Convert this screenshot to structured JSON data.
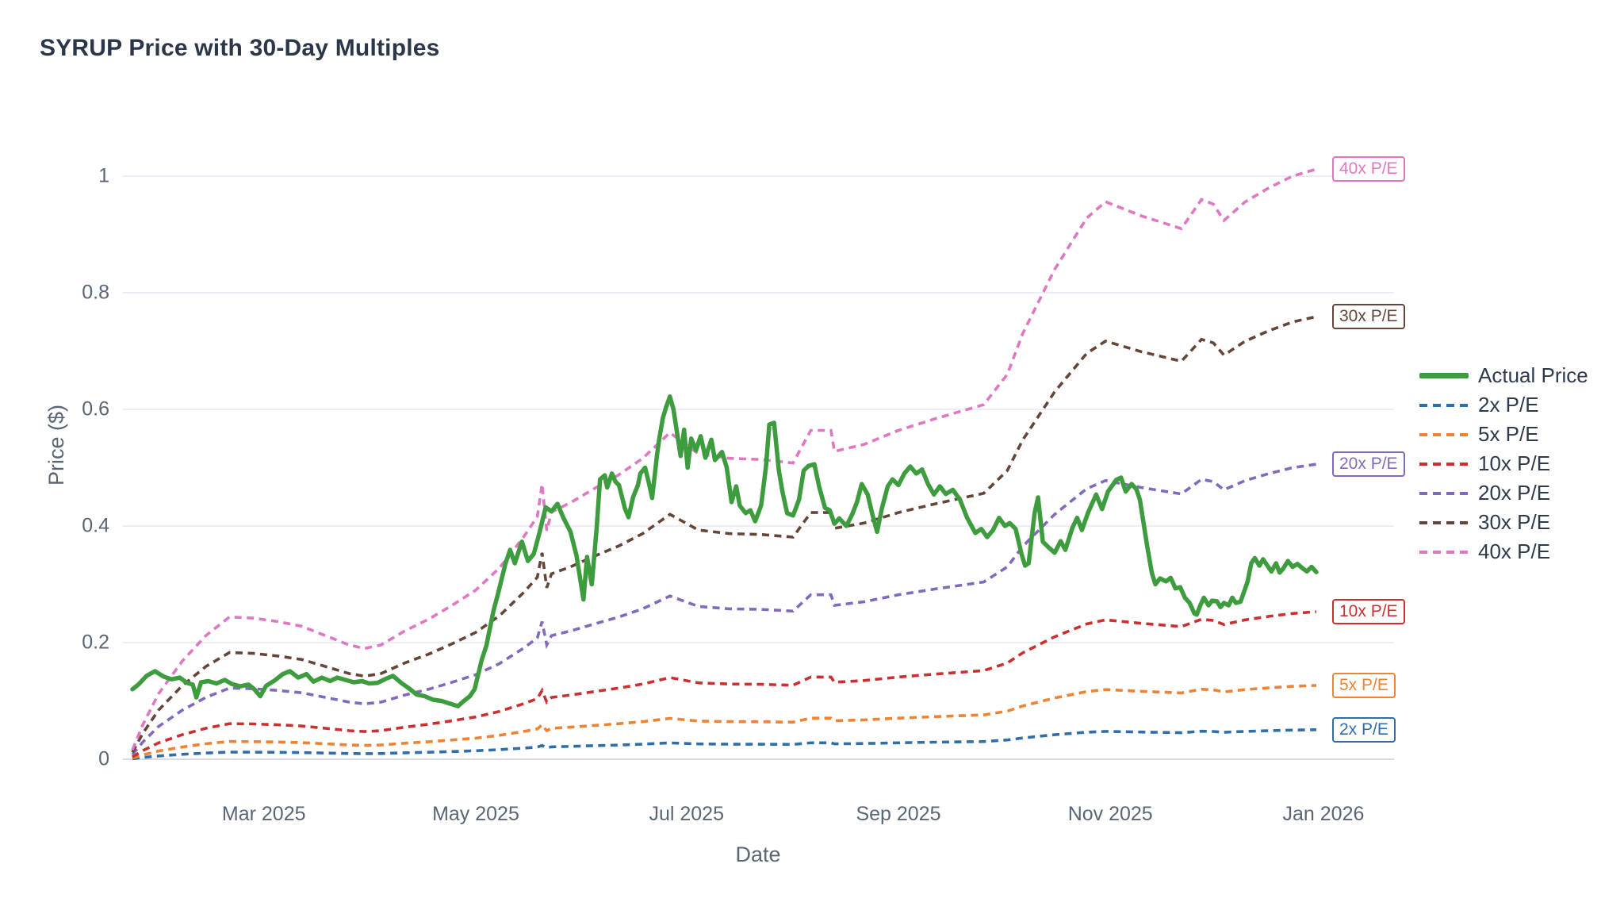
{
  "title": "SYRUP Price with 30-Day Multiples",
  "colors": {
    "actual": "#3d9c3d",
    "pe2": "#2f6ea8",
    "pe5": "#ee8333",
    "pe10": "#cb2f2f",
    "pe20": "#8169bd",
    "pe30": "#654538",
    "pe40": "#e077c3",
    "grid": "#eaedf1",
    "zeroline": "#d9dde2",
    "title_text": "#2b3648",
    "tick_text": "#5a6675"
  },
  "legend": {
    "items": [
      {
        "label": "Actual Price",
        "color": "#3d9c3d",
        "dash": false
      },
      {
        "label": "2x P/E",
        "color": "#2f6ea8",
        "dash": true
      },
      {
        "label": "5x P/E",
        "color": "#ee8333",
        "dash": true
      },
      {
        "label": "10x P/E",
        "color": "#cb2f2f",
        "dash": true
      },
      {
        "label": "20x P/E",
        "color": "#8169bd",
        "dash": true
      },
      {
        "label": "30x P/E",
        "color": "#654538",
        "dash": true
      },
      {
        "label": "40x P/E",
        "color": "#e077c3",
        "dash": true
      }
    ]
  },
  "line_labels": [
    {
      "label": "40x P/E",
      "multiple": 40,
      "color": "#e077c3"
    },
    {
      "label": "30x P/E",
      "multiple": 30,
      "color": "#654538"
    },
    {
      "label": "20x P/E",
      "multiple": 20,
      "color": "#8169bd"
    },
    {
      "label": "10x P/E",
      "multiple": 10,
      "color": "#cb2f2f"
    },
    {
      "label": "5x P/E",
      "multiple": 5,
      "color": "#ee8333"
    },
    {
      "label": "2x P/E",
      "multiple": 2,
      "color": "#2f6ea8"
    }
  ],
  "chart_data": {
    "type": "line",
    "title": "SYRUP Price with 30-Day Multiples",
    "xlabel": "Date",
    "ylabel": "Price ($)",
    "ylim": [
      0,
      1.05
    ],
    "grid": "horizontal",
    "x_ticks": [
      {
        "label": "Mar 2025",
        "f": 0.111
      },
      {
        "label": "May 2025",
        "f": 0.29
      },
      {
        "label": "Jul 2025",
        "f": 0.468
      },
      {
        "label": "Sep 2025",
        "f": 0.647
      },
      {
        "label": "Nov 2025",
        "f": 0.826
      },
      {
        "label": "Jan 2026",
        "f": 1.006
      }
    ],
    "y_ticks": [
      {
        "label": "0",
        "value": 0
      },
      {
        "label": "0.2",
        "value": 0.2
      },
      {
        "label": "0.4",
        "value": 0.4
      },
      {
        "label": "0.6",
        "value": 0.6
      },
      {
        "label": "0.8",
        "value": 0.8
      },
      {
        "label": "1",
        "value": 1
      }
    ],
    "series_actual": {
      "name": "Actual Price",
      "color": "#3d9c3d",
      "style": "solid",
      "points": [
        [
          0.0,
          0.12
        ],
        [
          0.005,
          0.128
        ],
        [
          0.012,
          0.143
        ],
        [
          0.019,
          0.151
        ],
        [
          0.026,
          0.142
        ],
        [
          0.033,
          0.137
        ],
        [
          0.04,
          0.14
        ],
        [
          0.046,
          0.131
        ],
        [
          0.051,
          0.128
        ],
        [
          0.054,
          0.106
        ],
        [
          0.058,
          0.132
        ],
        [
          0.064,
          0.134
        ],
        [
          0.071,
          0.13
        ],
        [
          0.078,
          0.136
        ],
        [
          0.084,
          0.129
        ],
        [
          0.091,
          0.125
        ],
        [
          0.098,
          0.128
        ],
        [
          0.103,
          0.12
        ],
        [
          0.108,
          0.108
        ],
        [
          0.113,
          0.126
        ],
        [
          0.12,
          0.135
        ],
        [
          0.127,
          0.146
        ],
        [
          0.133,
          0.151
        ],
        [
          0.14,
          0.14
        ],
        [
          0.147,
          0.146
        ],
        [
          0.153,
          0.133
        ],
        [
          0.16,
          0.14
        ],
        [
          0.167,
          0.134
        ],
        [
          0.173,
          0.14
        ],
        [
          0.18,
          0.136
        ],
        [
          0.187,
          0.132
        ],
        [
          0.194,
          0.134
        ],
        [
          0.2,
          0.13
        ],
        [
          0.207,
          0.131
        ],
        [
          0.214,
          0.138
        ],
        [
          0.22,
          0.143
        ],
        [
          0.227,
          0.131
        ],
        [
          0.234,
          0.121
        ],
        [
          0.24,
          0.111
        ],
        [
          0.247,
          0.108
        ],
        [
          0.254,
          0.102
        ],
        [
          0.261,
          0.1
        ],
        [
          0.267,
          0.096
        ],
        [
          0.275,
          0.091
        ],
        [
          0.28,
          0.1
        ],
        [
          0.285,
          0.108
        ],
        [
          0.289,
          0.12
        ],
        [
          0.292,
          0.145
        ],
        [
          0.295,
          0.17
        ],
        [
          0.299,
          0.195
        ],
        [
          0.302,
          0.225
        ],
        [
          0.305,
          0.255
        ],
        [
          0.309,
          0.285
        ],
        [
          0.312,
          0.31
        ],
        [
          0.315,
          0.335
        ],
        [
          0.319,
          0.359
        ],
        [
          0.323,
          0.336
        ],
        [
          0.329,
          0.373
        ],
        [
          0.334,
          0.34
        ],
        [
          0.339,
          0.352
        ],
        [
          0.344,
          0.39
        ],
        [
          0.349,
          0.432
        ],
        [
          0.354,
          0.425
        ],
        [
          0.359,
          0.438
        ],
        [
          0.364,
          0.414
        ],
        [
          0.37,
          0.39
        ],
        [
          0.375,
          0.35
        ],
        [
          0.381,
          0.274
        ],
        [
          0.384,
          0.347
        ],
        [
          0.388,
          0.3
        ],
        [
          0.392,
          0.394
        ],
        [
          0.395,
          0.48
        ],
        [
          0.399,
          0.487
        ],
        [
          0.401,
          0.466
        ],
        [
          0.405,
          0.49
        ],
        [
          0.408,
          0.476
        ],
        [
          0.411,
          0.47
        ],
        [
          0.416,
          0.43
        ],
        [
          0.419,
          0.415
        ],
        [
          0.423,
          0.45
        ],
        [
          0.427,
          0.47
        ],
        [
          0.429,
          0.49
        ],
        [
          0.433,
          0.5
        ],
        [
          0.436,
          0.476
        ],
        [
          0.439,
          0.448
        ],
        [
          0.443,
          0.52
        ],
        [
          0.445,
          0.55
        ],
        [
          0.448,
          0.585
        ],
        [
          0.451,
          0.605
        ],
        [
          0.454,
          0.622
        ],
        [
          0.457,
          0.6
        ],
        [
          0.46,
          0.56
        ],
        [
          0.463,
          0.52
        ],
        [
          0.466,
          0.565
        ],
        [
          0.469,
          0.5
        ],
        [
          0.472,
          0.55
        ],
        [
          0.476,
          0.53
        ],
        [
          0.48,
          0.554
        ],
        [
          0.484,
          0.517
        ],
        [
          0.489,
          0.548
        ],
        [
          0.492,
          0.513
        ],
        [
          0.498,
          0.527
        ],
        [
          0.502,
          0.5
        ],
        [
          0.506,
          0.441
        ],
        [
          0.51,
          0.468
        ],
        [
          0.513,
          0.435
        ],
        [
          0.518,
          0.422
        ],
        [
          0.522,
          0.427
        ],
        [
          0.526,
          0.408
        ],
        [
          0.531,
          0.435
        ],
        [
          0.535,
          0.5
        ],
        [
          0.538,
          0.574
        ],
        [
          0.542,
          0.577
        ],
        [
          0.546,
          0.495
        ],
        [
          0.549,
          0.459
        ],
        [
          0.553,
          0.422
        ],
        [
          0.558,
          0.418
        ],
        [
          0.563,
          0.445
        ],
        [
          0.567,
          0.495
        ],
        [
          0.571,
          0.503
        ],
        [
          0.576,
          0.506
        ],
        [
          0.58,
          0.468
        ],
        [
          0.585,
          0.431
        ],
        [
          0.589,
          0.427
        ],
        [
          0.593,
          0.404
        ],
        [
          0.597,
          0.413
        ],
        [
          0.603,
          0.4
        ],
        [
          0.608,
          0.42
        ],
        [
          0.612,
          0.441
        ],
        [
          0.616,
          0.472
        ],
        [
          0.621,
          0.454
        ],
        [
          0.625,
          0.42
        ],
        [
          0.629,
          0.39
        ],
        [
          0.633,
          0.43
        ],
        [
          0.638,
          0.468
        ],
        [
          0.642,
          0.48
        ],
        [
          0.647,
          0.47
        ],
        [
          0.652,
          0.49
        ],
        [
          0.657,
          0.502
        ],
        [
          0.662,
          0.49
        ],
        [
          0.667,
          0.497
        ],
        [
          0.672,
          0.472
        ],
        [
          0.677,
          0.454
        ],
        [
          0.682,
          0.468
        ],
        [
          0.687,
          0.455
        ],
        [
          0.693,
          0.462
        ],
        [
          0.699,
          0.445
        ],
        [
          0.705,
          0.414
        ],
        [
          0.712,
          0.388
        ],
        [
          0.717,
          0.395
        ],
        [
          0.722,
          0.381
        ],
        [
          0.727,
          0.393
        ],
        [
          0.732,
          0.414
        ],
        [
          0.737,
          0.4
        ],
        [
          0.741,
          0.405
        ],
        [
          0.746,
          0.395
        ],
        [
          0.751,
          0.352
        ],
        [
          0.754,
          0.332
        ],
        [
          0.757,
          0.336
        ],
        [
          0.762,
          0.422
        ],
        [
          0.765,
          0.449
        ],
        [
          0.769,
          0.373
        ],
        [
          0.774,
          0.363
        ],
        [
          0.779,
          0.354
        ],
        [
          0.784,
          0.374
        ],
        [
          0.788,
          0.359
        ],
        [
          0.794,
          0.397
        ],
        [
          0.798,
          0.414
        ],
        [
          0.802,
          0.393
        ],
        [
          0.807,
          0.422
        ],
        [
          0.814,
          0.454
        ],
        [
          0.819,
          0.429
        ],
        [
          0.824,
          0.459
        ],
        [
          0.831,
          0.479
        ],
        [
          0.835,
          0.483
        ],
        [
          0.839,
          0.459
        ],
        [
          0.844,
          0.472
        ],
        [
          0.848,
          0.463
        ],
        [
          0.851,
          0.445
        ],
        [
          0.857,
          0.367
        ],
        [
          0.861,
          0.32
        ],
        [
          0.864,
          0.3
        ],
        [
          0.868,
          0.31
        ],
        [
          0.873,
          0.305
        ],
        [
          0.877,
          0.311
        ],
        [
          0.881,
          0.293
        ],
        [
          0.885,
          0.295
        ],
        [
          0.889,
          0.277
        ],
        [
          0.893,
          0.268
        ],
        [
          0.897,
          0.25
        ],
        [
          0.899,
          0.248
        ],
        [
          0.902,
          0.264
        ],
        [
          0.905,
          0.277
        ],
        [
          0.909,
          0.264
        ],
        [
          0.912,
          0.272
        ],
        [
          0.916,
          0.271
        ],
        [
          0.919,
          0.261
        ],
        [
          0.922,
          0.268
        ],
        [
          0.926,
          0.264
        ],
        [
          0.929,
          0.277
        ],
        [
          0.932,
          0.268
        ],
        [
          0.936,
          0.27
        ],
        [
          0.942,
          0.305
        ],
        [
          0.945,
          0.336
        ],
        [
          0.948,
          0.345
        ],
        [
          0.952,
          0.332
        ],
        [
          0.955,
          0.343
        ],
        [
          0.958,
          0.334
        ],
        [
          0.962,
          0.322
        ],
        [
          0.966,
          0.336
        ],
        [
          0.969,
          0.32
        ],
        [
          0.972,
          0.327
        ],
        [
          0.976,
          0.34
        ],
        [
          0.98,
          0.33
        ],
        [
          0.984,
          0.335
        ],
        [
          0.988,
          0.328
        ],
        [
          0.992,
          0.322
        ],
        [
          0.996,
          0.33
        ],
        [
          1.0,
          0.321
        ]
      ]
    },
    "multiple_series": {
      "base_points": [
        [
          0.0,
          0.0004
        ],
        [
          0.009,
          0.0015
        ],
        [
          0.022,
          0.0028
        ],
        [
          0.042,
          0.0042
        ],
        [
          0.062,
          0.0053
        ],
        [
          0.082,
          0.0061
        ],
        [
          0.102,
          0.00605
        ],
        [
          0.123,
          0.0059
        ],
        [
          0.143,
          0.0057
        ],
        [
          0.163,
          0.0053
        ],
        [
          0.183,
          0.0049
        ],
        [
          0.196,
          0.00475
        ],
        [
          0.21,
          0.0049
        ],
        [
          0.23,
          0.0055
        ],
        [
          0.25,
          0.006
        ],
        [
          0.27,
          0.0066
        ],
        [
          0.29,
          0.00725
        ],
        [
          0.31,
          0.0082
        ],
        [
          0.33,
          0.0095
        ],
        [
          0.342,
          0.0104
        ],
        [
          0.346,
          0.0118
        ],
        [
          0.35,
          0.0098
        ],
        [
          0.354,
          0.0106
        ],
        [
          0.37,
          0.011
        ],
        [
          0.39,
          0.0116
        ],
        [
          0.411,
          0.0122
        ],
        [
          0.431,
          0.0129
        ],
        [
          0.454,
          0.014
        ],
        [
          0.478,
          0.0131
        ],
        [
          0.504,
          0.0129
        ],
        [
          0.531,
          0.01285
        ],
        [
          0.558,
          0.0127
        ],
        [
          0.573,
          0.0141
        ],
        [
          0.59,
          0.0141
        ],
        [
          0.593,
          0.0132
        ],
        [
          0.618,
          0.0135
        ],
        [
          0.647,
          0.0141
        ],
        [
          0.678,
          0.0146
        ],
        [
          0.719,
          0.0152
        ],
        [
          0.739,
          0.0165
        ],
        [
          0.752,
          0.01825
        ],
        [
          0.779,
          0.021
        ],
        [
          0.806,
          0.0232
        ],
        [
          0.822,
          0.0239
        ],
        [
          0.852,
          0.0233
        ],
        [
          0.886,
          0.02275
        ],
        [
          0.903,
          0.024
        ],
        [
          0.913,
          0.0238
        ],
        [
          0.922,
          0.0231
        ],
        [
          0.94,
          0.0239
        ],
        [
          0.96,
          0.0245
        ],
        [
          0.98,
          0.025
        ],
        [
          1.0,
          0.0253
        ]
      ],
      "lines": [
        {
          "name": "2x P/E",
          "multiple": 2,
          "color": "#2f6ea8"
        },
        {
          "name": "5x P/E",
          "multiple": 5,
          "color": "#ee8333"
        },
        {
          "name": "10x P/E",
          "multiple": 10,
          "color": "#cb2f2f"
        },
        {
          "name": "20x P/E",
          "multiple": 20,
          "color": "#8169bd"
        },
        {
          "name": "30x P/E",
          "multiple": 30,
          "color": "#654538"
        },
        {
          "name": "40x P/E",
          "multiple": 40,
          "color": "#e077c3"
        }
      ]
    }
  }
}
